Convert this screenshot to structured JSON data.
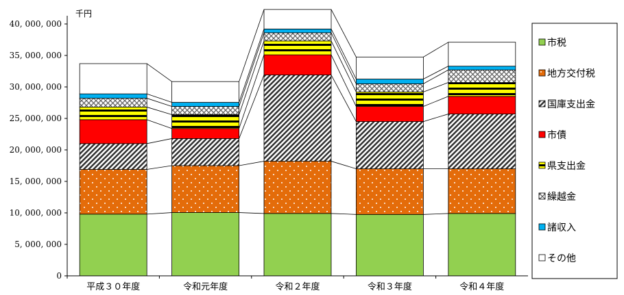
{
  "chart_data": {
    "type": "bar",
    "stacked": true,
    "unit_label": "千円",
    "categories": [
      "平成３０年度",
      "令和元年度",
      "令和２年度",
      "令和３年度",
      "令和４年度"
    ],
    "ylim": [
      0,
      40000000
    ],
    "yticks": [
      0,
      5000000,
      10000000,
      15000000,
      20000000,
      25000000,
      30000000,
      35000000,
      40000000
    ],
    "ytick_labels": [
      "0",
      "5, 000, 000",
      "10, 000, 000",
      "15, 000, 000",
      "20, 000, 000",
      "25, 000, 000",
      "30, 000, 000",
      "35, 000, 000",
      "40, 000, 000"
    ],
    "legend_position": "right",
    "grid": false,
    "series": [
      {
        "name": "市税",
        "color": "#92d050",
        "pattern": "solid",
        "values": [
          9800000,
          10050000,
          9900000,
          9750000,
          9900000
        ]
      },
      {
        "name": "地方交付税",
        "color": "#e46c0a",
        "pattern": "dots",
        "values": [
          7100000,
          7450000,
          8300000,
          7250000,
          7100000
        ]
      },
      {
        "name": "国庫支出金",
        "color": "#404040",
        "pattern": "diagonal",
        "values": [
          4100000,
          4300000,
          13700000,
          7500000,
          8700000
        ]
      },
      {
        "name": "市債",
        "color": "#ff0000",
        "pattern": "solid",
        "values": [
          3800000,
          1600000,
          3200000,
          2400000,
          2800000
        ]
      },
      {
        "name": "県支出金",
        "color": "#ffff00",
        "pattern": "hstripes",
        "values": [
          2000000,
          2200000,
          2200000,
          2300000,
          2200000
        ]
      },
      {
        "name": "繰越金",
        "color": "#808080",
        "pattern": "crosshatch",
        "values": [
          1400000,
          1300000,
          1300000,
          1300000,
          2000000
        ]
      },
      {
        "name": "諸収入",
        "color": "#00b0f0",
        "pattern": "solid",
        "values": [
          700000,
          650000,
          600000,
          750000,
          600000
        ]
      },
      {
        "name": "その他",
        "color": "#ffffff",
        "pattern": "solid",
        "values": [
          4800000,
          3300000,
          3100000,
          3500000,
          3800000
        ]
      }
    ]
  }
}
